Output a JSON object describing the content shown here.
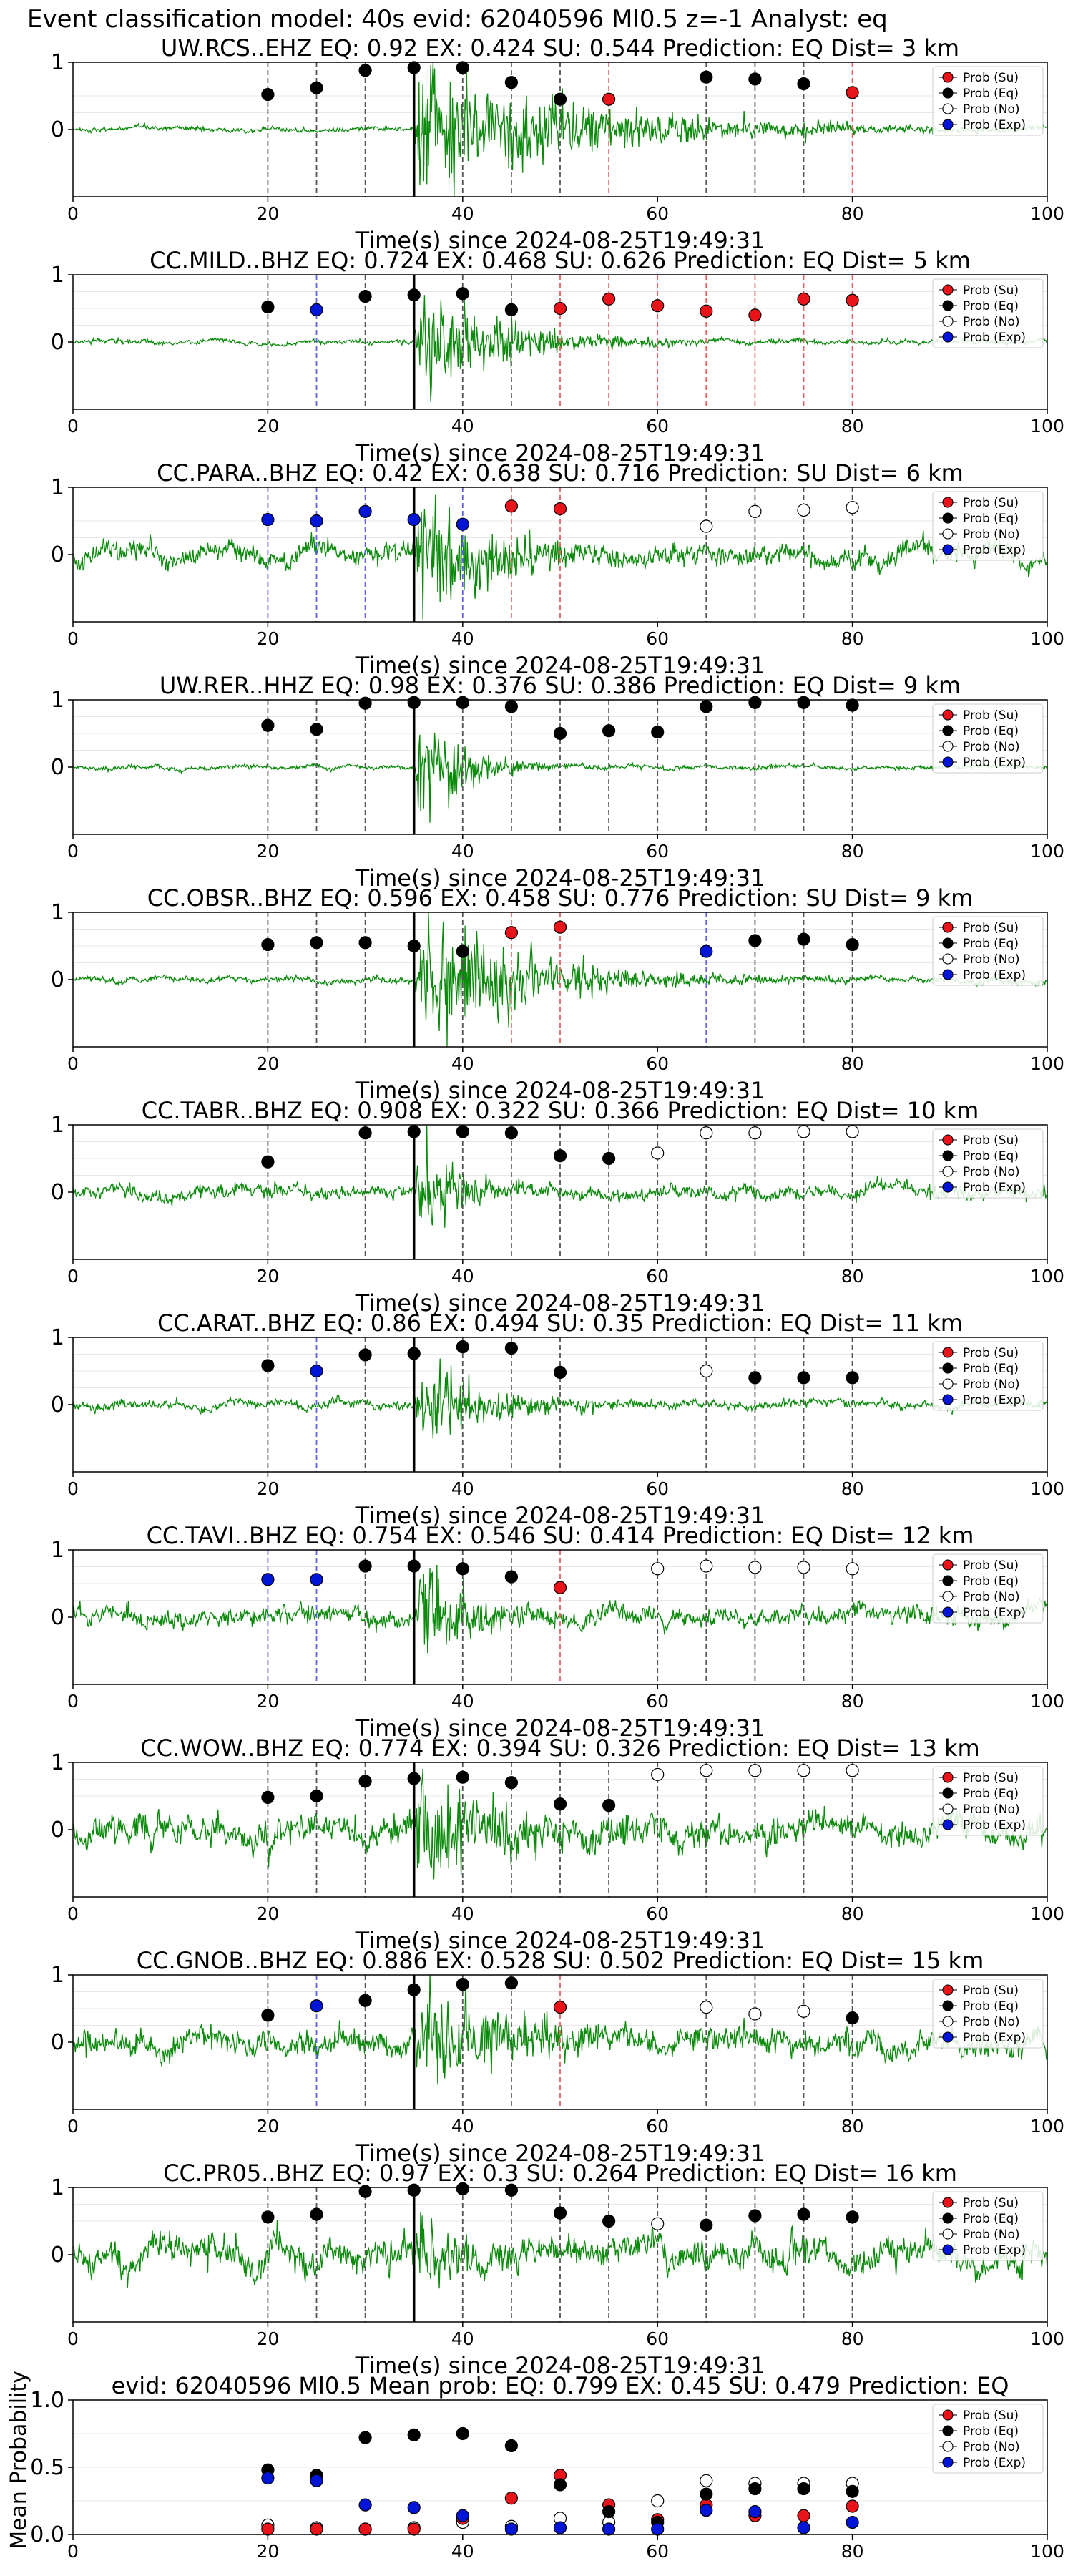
{
  "suptitle": "Event classification model: 40s evid: 62040596 Ml0.5 z=-1 Analyst: eq",
  "colors": {
    "su": "#e8141a",
    "eq": "#000000",
    "no": "#ffffff",
    "exp": "#0015d6",
    "waveform": "#0a8a0a",
    "vline_eq": "#555555",
    "vline_su": "#e86060",
    "vline_exp": "#6060e8",
    "pick": "#000000"
  },
  "legend": [
    "Prob (Su)",
    "Prob (Eq)",
    "Prob (No)",
    "Prob (Exp)"
  ],
  "xticks": [
    0,
    20,
    40,
    60,
    80,
    100
  ],
  "xlabel": "Time(s) since 2024-08-25T19:49:31",
  "pick_time": 35,
  "chart_data": [
    {
      "type": "scatter",
      "title": "UW.RCS..EHZ   EQ: 0.92  EX: 0.424  SU: 0.544   Prediction: EQ    Dist= 3 km",
      "xlabel": "Time(s) since 2024-08-25T19:49:31",
      "xlim": [
        0,
        100
      ],
      "ylim": [
        -1,
        1
      ],
      "yticks": [
        0,
        1
      ],
      "noise": 0.03,
      "burst": 1.0,
      "decay": 0.06,
      "burst_dur": 10,
      "points": [
        {
          "x": 20,
          "y": 0.52,
          "cls": "eq"
        },
        {
          "x": 25,
          "y": 0.62,
          "cls": "eq"
        },
        {
          "x": 30,
          "y": 0.88,
          "cls": "eq"
        },
        {
          "x": 35,
          "y": 0.92,
          "cls": "eq"
        },
        {
          "x": 40,
          "y": 0.92,
          "cls": "eq"
        },
        {
          "x": 45,
          "y": 0.7,
          "cls": "eq"
        },
        {
          "x": 50,
          "y": 0.45,
          "cls": "eq"
        },
        {
          "x": 55,
          "y": 0.45,
          "cls": "su"
        },
        {
          "x": 65,
          "y": 0.78,
          "cls": "eq"
        },
        {
          "x": 70,
          "y": 0.75,
          "cls": "eq"
        },
        {
          "x": 75,
          "y": 0.68,
          "cls": "eq"
        },
        {
          "x": 80,
          "y": 0.55,
          "cls": "su"
        }
      ]
    },
    {
      "type": "scatter",
      "title": "CC.MILD..BHZ   EQ: 0.724  EX: 0.468  SU: 0.626   Prediction: EQ    Dist= 5 km",
      "xlabel": "Time(s) since 2024-08-25T19:49:31",
      "xlim": [
        0,
        100
      ],
      "ylim": [
        -1,
        1
      ],
      "yticks": [
        0,
        1
      ],
      "noise": 0.03,
      "burst": 0.85,
      "decay": 0.11,
      "burst_dur": 12,
      "points": [
        {
          "x": 20,
          "y": 0.52,
          "cls": "eq"
        },
        {
          "x": 25,
          "y": 0.48,
          "cls": "exp"
        },
        {
          "x": 30,
          "y": 0.68,
          "cls": "eq"
        },
        {
          "x": 35,
          "y": 0.7,
          "cls": "eq"
        },
        {
          "x": 40,
          "y": 0.72,
          "cls": "eq"
        },
        {
          "x": 45,
          "y": 0.48,
          "cls": "eq"
        },
        {
          "x": 50,
          "y": 0.5,
          "cls": "su"
        },
        {
          "x": 55,
          "y": 0.64,
          "cls": "su"
        },
        {
          "x": 60,
          "y": 0.54,
          "cls": "su"
        },
        {
          "x": 65,
          "y": 0.46,
          "cls": "su"
        },
        {
          "x": 70,
          "y": 0.4,
          "cls": "su"
        },
        {
          "x": 75,
          "y": 0.64,
          "cls": "su"
        },
        {
          "x": 80,
          "y": 0.62,
          "cls": "su"
        }
      ]
    },
    {
      "type": "scatter",
      "title": "CC.PARA..BHZ   EQ: 0.42  EX: 0.638  SU: 0.716   Prediction: SU    Dist= 6 km",
      "xlabel": "Time(s) since 2024-08-25T19:49:31",
      "xlim": [
        0,
        100
      ],
      "ylim": [
        -1,
        1
      ],
      "yticks": [
        0,
        1
      ],
      "noise": 0.14,
      "burst": 1.0,
      "decay": 0.13,
      "burst_dur": 12,
      "points": [
        {
          "x": 20,
          "y": 0.52,
          "cls": "exp"
        },
        {
          "x": 25,
          "y": 0.5,
          "cls": "exp"
        },
        {
          "x": 30,
          "y": 0.64,
          "cls": "exp"
        },
        {
          "x": 35,
          "y": 0.52,
          "cls": "exp"
        },
        {
          "x": 40,
          "y": 0.45,
          "cls": "exp"
        },
        {
          "x": 45,
          "y": 0.72,
          "cls": "su"
        },
        {
          "x": 50,
          "y": 0.68,
          "cls": "su"
        },
        {
          "x": 65,
          "y": 0.42,
          "cls": "no"
        },
        {
          "x": 70,
          "y": 0.64,
          "cls": "no"
        },
        {
          "x": 75,
          "y": 0.66,
          "cls": "no"
        },
        {
          "x": 80,
          "y": 0.7,
          "cls": "no"
        }
      ]
    },
    {
      "type": "scatter",
      "title": "UW.RER..HHZ   EQ: 0.98  EX: 0.376  SU: 0.386   Prediction: EQ    Dist= 9 km",
      "xlabel": "Time(s) since 2024-08-25T19:49:31",
      "xlim": [
        0,
        100
      ],
      "ylim": [
        -1,
        1
      ],
      "yticks": [
        0,
        1
      ],
      "noise": 0.03,
      "burst": 1.0,
      "decay": 0.22,
      "burst_dur": 8,
      "points": [
        {
          "x": 20,
          "y": 0.62,
          "cls": "eq"
        },
        {
          "x": 25,
          "y": 0.56,
          "cls": "eq"
        },
        {
          "x": 30,
          "y": 0.95,
          "cls": "eq"
        },
        {
          "x": 35,
          "y": 0.96,
          "cls": "eq"
        },
        {
          "x": 40,
          "y": 0.96,
          "cls": "eq"
        },
        {
          "x": 45,
          "y": 0.9,
          "cls": "eq"
        },
        {
          "x": 50,
          "y": 0.5,
          "cls": "eq"
        },
        {
          "x": 55,
          "y": 0.54,
          "cls": "eq"
        },
        {
          "x": 60,
          "y": 0.52,
          "cls": "eq"
        },
        {
          "x": 65,
          "y": 0.9,
          "cls": "eq"
        },
        {
          "x": 70,
          "y": 0.96,
          "cls": "eq"
        },
        {
          "x": 75,
          "y": 0.96,
          "cls": "eq"
        },
        {
          "x": 80,
          "y": 0.92,
          "cls": "eq"
        }
      ]
    },
    {
      "type": "scatter",
      "title": "CC.OBSR..BHZ   EQ: 0.596  EX: 0.458  SU: 0.776   Prediction: SU    Dist= 9 km",
      "xlabel": "Time(s) since 2024-08-25T19:49:31",
      "xlim": [
        0,
        100
      ],
      "ylim": [
        -1,
        1
      ],
      "yticks": [
        0,
        1
      ],
      "noise": 0.04,
      "burst": 1.0,
      "decay": 0.09,
      "burst_dur": 14,
      "points": [
        {
          "x": 20,
          "y": 0.52,
          "cls": "eq"
        },
        {
          "x": 25,
          "y": 0.55,
          "cls": "eq"
        },
        {
          "x": 30,
          "y": 0.55,
          "cls": "eq"
        },
        {
          "x": 35,
          "y": 0.5,
          "cls": "eq"
        },
        {
          "x": 40,
          "y": 0.42,
          "cls": "eq"
        },
        {
          "x": 45,
          "y": 0.7,
          "cls": "su"
        },
        {
          "x": 50,
          "y": 0.78,
          "cls": "su"
        },
        {
          "x": 65,
          "y": 0.42,
          "cls": "exp"
        },
        {
          "x": 70,
          "y": 0.58,
          "cls": "eq"
        },
        {
          "x": 75,
          "y": 0.6,
          "cls": "eq"
        },
        {
          "x": 80,
          "y": 0.52,
          "cls": "eq"
        }
      ]
    },
    {
      "type": "scatter",
      "title": "CC.TABR..BHZ   EQ: 0.908  EX: 0.322  SU: 0.366   Prediction: EQ    Dist= 10 km",
      "xlabel": "Time(s) since 2024-08-25T19:49:31",
      "xlim": [
        0,
        100
      ],
      "ylim": [
        -1,
        1
      ],
      "yticks": [
        0,
        1
      ],
      "noise": 0.09,
      "burst": 0.8,
      "decay": 0.25,
      "burst_dur": 8,
      "points": [
        {
          "x": 20,
          "y": 0.45,
          "cls": "eq"
        },
        {
          "x": 30,
          "y": 0.88,
          "cls": "eq"
        },
        {
          "x": 35,
          "y": 0.9,
          "cls": "eq"
        },
        {
          "x": 40,
          "y": 0.9,
          "cls": "eq"
        },
        {
          "x": 45,
          "y": 0.88,
          "cls": "eq"
        },
        {
          "x": 50,
          "y": 0.54,
          "cls": "eq"
        },
        {
          "x": 55,
          "y": 0.5,
          "cls": "eq"
        },
        {
          "x": 60,
          "y": 0.58,
          "cls": "no"
        },
        {
          "x": 65,
          "y": 0.88,
          "cls": "no"
        },
        {
          "x": 70,
          "y": 0.88,
          "cls": "no"
        },
        {
          "x": 75,
          "y": 0.9,
          "cls": "no"
        },
        {
          "x": 80,
          "y": 0.9,
          "cls": "no"
        }
      ]
    },
    {
      "type": "scatter",
      "title": "CC.ARAT..BHZ   EQ: 0.86  EX: 0.494  SU: 0.35   Prediction: EQ    Dist= 11 km",
      "xlabel": "Time(s) since 2024-08-25T19:49:31",
      "xlim": [
        0,
        100
      ],
      "ylim": [
        -1,
        1
      ],
      "yticks": [
        0,
        1
      ],
      "noise": 0.06,
      "burst": 0.7,
      "decay": 0.14,
      "burst_dur": 10,
      "points": [
        {
          "x": 20,
          "y": 0.58,
          "cls": "eq"
        },
        {
          "x": 25,
          "y": 0.5,
          "cls": "exp"
        },
        {
          "x": 30,
          "y": 0.74,
          "cls": "eq"
        },
        {
          "x": 35,
          "y": 0.76,
          "cls": "eq"
        },
        {
          "x": 40,
          "y": 0.86,
          "cls": "eq"
        },
        {
          "x": 45,
          "y": 0.84,
          "cls": "eq"
        },
        {
          "x": 50,
          "y": 0.48,
          "cls": "eq"
        },
        {
          "x": 65,
          "y": 0.5,
          "cls": "no"
        },
        {
          "x": 70,
          "y": 0.4,
          "cls": "eq"
        },
        {
          "x": 75,
          "y": 0.4,
          "cls": "eq"
        },
        {
          "x": 80,
          "y": 0.4,
          "cls": "eq"
        }
      ]
    },
    {
      "type": "scatter",
      "title": "CC.TAVI..BHZ   EQ: 0.754  EX: 0.546  SU: 0.414   Prediction: EQ    Dist= 12 km",
      "xlabel": "Time(s) since 2024-08-25T19:49:31",
      "xlim": [
        0,
        100
      ],
      "ylim": [
        -1,
        1
      ],
      "yticks": [
        0,
        1
      ],
      "noise": 0.12,
      "burst": 0.9,
      "decay": 0.2,
      "burst_dur": 9,
      "points": [
        {
          "x": 20,
          "y": 0.56,
          "cls": "exp"
        },
        {
          "x": 25,
          "y": 0.56,
          "cls": "exp"
        },
        {
          "x": 30,
          "y": 0.76,
          "cls": "eq"
        },
        {
          "x": 35,
          "y": 0.76,
          "cls": "eq"
        },
        {
          "x": 40,
          "y": 0.72,
          "cls": "eq"
        },
        {
          "x": 45,
          "y": 0.6,
          "cls": "eq"
        },
        {
          "x": 50,
          "y": 0.44,
          "cls": "su"
        },
        {
          "x": 60,
          "y": 0.72,
          "cls": "no"
        },
        {
          "x": 65,
          "y": 0.76,
          "cls": "no"
        },
        {
          "x": 70,
          "y": 0.74,
          "cls": "no"
        },
        {
          "x": 75,
          "y": 0.74,
          "cls": "no"
        },
        {
          "x": 80,
          "y": 0.72,
          "cls": "no"
        }
      ]
    },
    {
      "type": "scatter",
      "title": "CC.WOW..BHZ   EQ: 0.774  EX: 0.394  SU: 0.326   Prediction: EQ    Dist= 13 km",
      "xlabel": "Time(s) since 2024-08-25T19:49:31",
      "xlim": [
        0,
        100
      ],
      "ylim": [
        -1,
        1
      ],
      "yticks": [
        0,
        1
      ],
      "noise": 0.2,
      "burst": 1.0,
      "decay": 0.15,
      "burst_dur": 10,
      "points": [
        {
          "x": 20,
          "y": 0.48,
          "cls": "eq"
        },
        {
          "x": 25,
          "y": 0.5,
          "cls": "eq"
        },
        {
          "x": 30,
          "y": 0.72,
          "cls": "eq"
        },
        {
          "x": 35,
          "y": 0.76,
          "cls": "eq"
        },
        {
          "x": 40,
          "y": 0.78,
          "cls": "eq"
        },
        {
          "x": 45,
          "y": 0.7,
          "cls": "eq"
        },
        {
          "x": 50,
          "y": 0.38,
          "cls": "eq"
        },
        {
          "x": 55,
          "y": 0.36,
          "cls": "eq"
        },
        {
          "x": 60,
          "y": 0.82,
          "cls": "no"
        },
        {
          "x": 65,
          "y": 0.88,
          "cls": "no"
        },
        {
          "x": 70,
          "y": 0.88,
          "cls": "no"
        },
        {
          "x": 75,
          "y": 0.88,
          "cls": "no"
        },
        {
          "x": 80,
          "y": 0.88,
          "cls": "no"
        }
      ]
    },
    {
      "type": "scatter",
      "title": "CC.GNOB..BHZ   EQ: 0.886  EX: 0.528  SU: 0.502   Prediction: EQ    Dist= 15 km",
      "xlabel": "Time(s) since 2024-08-25T19:49:31",
      "xlim": [
        0,
        100
      ],
      "ylim": [
        -1,
        1
      ],
      "yticks": [
        0,
        1
      ],
      "noise": 0.17,
      "burst": 0.9,
      "decay": 0.1,
      "burst_dur": 10,
      "points": [
        {
          "x": 20,
          "y": 0.4,
          "cls": "eq"
        },
        {
          "x": 25,
          "y": 0.54,
          "cls": "exp"
        },
        {
          "x": 30,
          "y": 0.62,
          "cls": "eq"
        },
        {
          "x": 35,
          "y": 0.78,
          "cls": "eq"
        },
        {
          "x": 40,
          "y": 0.86,
          "cls": "eq"
        },
        {
          "x": 45,
          "y": 0.88,
          "cls": "eq"
        },
        {
          "x": 50,
          "y": 0.52,
          "cls": "su"
        },
        {
          "x": 65,
          "y": 0.52,
          "cls": "no"
        },
        {
          "x": 70,
          "y": 0.42,
          "cls": "no"
        },
        {
          "x": 75,
          "y": 0.46,
          "cls": "no"
        },
        {
          "x": 80,
          "y": 0.36,
          "cls": "eq"
        }
      ]
    },
    {
      "type": "scatter",
      "title": "CC.PR05..BHZ   EQ: 0.97  EX: 0.3  SU: 0.264   Prediction: EQ    Dist= 16 km",
      "xlabel": "Time(s) since 2024-08-25T19:49:31",
      "xlim": [
        0,
        100
      ],
      "ylim": [
        -1,
        1
      ],
      "yticks": [
        0,
        1
      ],
      "noise": 0.2,
      "burst": 0.7,
      "decay": 0.2,
      "burst_dur": 8,
      "points": [
        {
          "x": 20,
          "y": 0.56,
          "cls": "eq"
        },
        {
          "x": 25,
          "y": 0.6,
          "cls": "eq"
        },
        {
          "x": 30,
          "y": 0.94,
          "cls": "eq"
        },
        {
          "x": 35,
          "y": 0.96,
          "cls": "eq"
        },
        {
          "x": 40,
          "y": 0.98,
          "cls": "eq"
        },
        {
          "x": 45,
          "y": 0.96,
          "cls": "eq"
        },
        {
          "x": 50,
          "y": 0.62,
          "cls": "eq"
        },
        {
          "x": 55,
          "y": 0.5,
          "cls": "eq"
        },
        {
          "x": 60,
          "y": 0.46,
          "cls": "no"
        },
        {
          "x": 65,
          "y": 0.44,
          "cls": "eq"
        },
        {
          "x": 70,
          "y": 0.58,
          "cls": "eq"
        },
        {
          "x": 75,
          "y": 0.6,
          "cls": "eq"
        },
        {
          "x": 80,
          "y": 0.56,
          "cls": "eq"
        }
      ]
    },
    {
      "type": "scatter",
      "title": "evid: 62040596  Ml0.5   Mean prob:   EQ: 0.799  EX: 0.45  SU: 0.479   Prediction: EQ",
      "ylabel": "Mean Probability",
      "xlim": [
        0,
        100
      ],
      "ylim": [
        0,
        1
      ],
      "yticks": [
        0.0,
        0.5,
        1.0
      ],
      "series": [
        {
          "cls": "no",
          "x": [
            20,
            25,
            30,
            35,
            40,
            45,
            50,
            55,
            60,
            65,
            70,
            75,
            80
          ],
          "y": [
            0.07,
            0.05,
            0.04,
            0.05,
            0.09,
            0.06,
            0.12,
            0.09,
            0.25,
            0.4,
            0.38,
            0.38,
            0.38
          ]
        },
        {
          "cls": "su",
          "x": [
            20,
            25,
            30,
            35,
            40,
            45,
            50,
            55,
            60,
            65,
            70,
            75,
            80
          ],
          "y": [
            0.04,
            0.04,
            0.04,
            0.04,
            0.12,
            0.27,
            0.44,
            0.22,
            0.11,
            0.22,
            0.14,
            0.14,
            0.21
          ]
        },
        {
          "cls": "eq",
          "x": [
            20,
            25,
            30,
            35,
            40,
            45,
            50,
            55,
            60,
            65,
            70,
            75,
            80
          ],
          "y": [
            0.48,
            0.44,
            0.72,
            0.74,
            0.75,
            0.66,
            0.37,
            0.17,
            0.09,
            0.3,
            0.34,
            0.34,
            0.32
          ]
        },
        {
          "cls": "exp",
          "x": [
            20,
            25,
            30,
            35,
            40,
            45,
            50,
            55,
            60,
            65,
            70,
            75,
            80
          ],
          "y": [
            0.42,
            0.4,
            0.22,
            0.2,
            0.14,
            0.04,
            0.05,
            0.04,
            0.04,
            0.18,
            0.17,
            0.05,
            0.09
          ]
        }
      ]
    }
  ]
}
